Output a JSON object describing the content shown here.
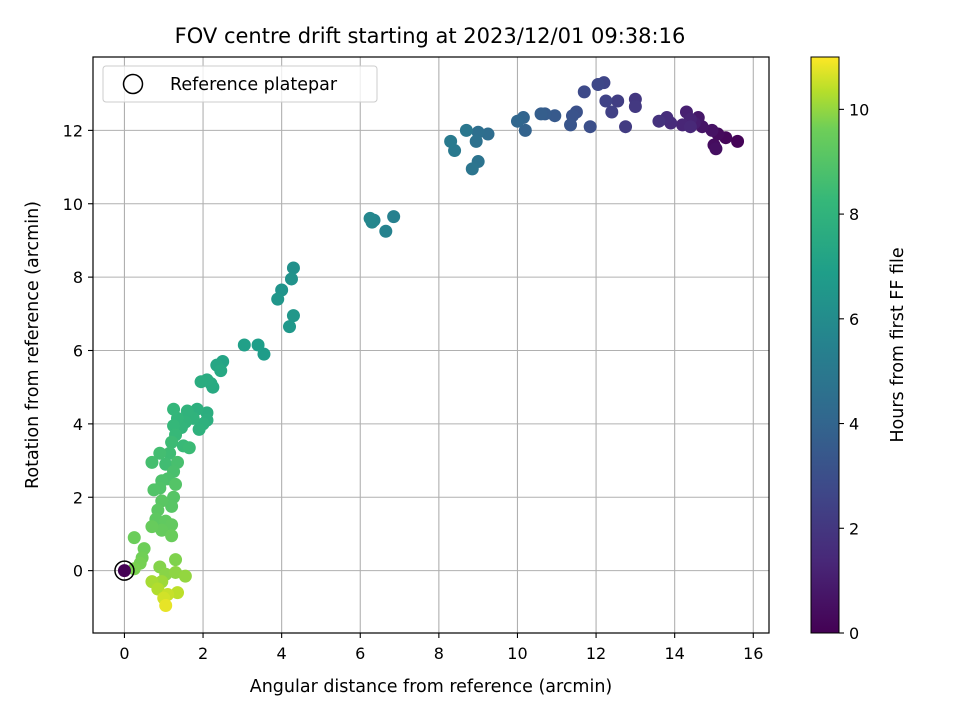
{
  "chart_data": {
    "type": "scatter",
    "title": "FOV centre drift starting at 2023/12/01 09:38:16",
    "xlabel": "Angular distance from reference (arcmin)",
    "ylabel": "Rotation from reference (arcmin)",
    "xlim": [
      -0.8,
      16.4
    ],
    "ylim": [
      -1.7,
      14.0
    ],
    "xticks": [
      0,
      2,
      4,
      6,
      8,
      10,
      12,
      14,
      16
    ],
    "yticks": [
      0,
      2,
      4,
      6,
      8,
      10,
      12
    ],
    "grid": true,
    "legend": {
      "placement": "top-left",
      "entries": [
        "Reference platepar"
      ]
    },
    "colorbar": {
      "label": "Hours from first FF file",
      "range": [
        0,
        11
      ],
      "ticks": [
        0,
        2,
        4,
        6,
        8,
        10
      ],
      "colormap": "viridis"
    },
    "reference_point": {
      "x": 0,
      "y": 0
    },
    "points": [
      {
        "x": 15.6,
        "y": 11.7,
        "c": 0.1
      },
      {
        "x": 15.3,
        "y": 11.8,
        "c": 0.2
      },
      {
        "x": 15.1,
        "y": 11.9,
        "c": 0.3
      },
      {
        "x": 15.0,
        "y": 11.6,
        "c": 0.4
      },
      {
        "x": 15.05,
        "y": 11.5,
        "c": 0.5
      },
      {
        "x": 14.95,
        "y": 12.0,
        "c": 0.6
      },
      {
        "x": 14.7,
        "y": 12.1,
        "c": 0.7
      },
      {
        "x": 14.6,
        "y": 12.35,
        "c": 0.8
      },
      {
        "x": 14.5,
        "y": 12.2,
        "c": 1.0
      },
      {
        "x": 14.3,
        "y": 12.5,
        "c": 1.1
      },
      {
        "x": 14.4,
        "y": 12.3,
        "c": 1.2
      },
      {
        "x": 14.2,
        "y": 12.15,
        "c": 1.3
      },
      {
        "x": 14.4,
        "y": 12.1,
        "c": 1.4
      },
      {
        "x": 13.9,
        "y": 12.2,
        "c": 1.5
      },
      {
        "x": 13.8,
        "y": 12.35,
        "c": 1.6
      },
      {
        "x": 13.6,
        "y": 12.25,
        "c": 1.8
      },
      {
        "x": 13.0,
        "y": 12.85,
        "c": 2.0
      },
      {
        "x": 13.0,
        "y": 12.65,
        "c": 2.1
      },
      {
        "x": 12.75,
        "y": 12.1,
        "c": 2.2
      },
      {
        "x": 12.55,
        "y": 12.8,
        "c": 2.3
      },
      {
        "x": 12.4,
        "y": 12.5,
        "c": 2.4
      },
      {
        "x": 12.25,
        "y": 12.8,
        "c": 2.5
      },
      {
        "x": 12.2,
        "y": 13.3,
        "c": 2.6
      },
      {
        "x": 12.05,
        "y": 13.25,
        "c": 2.7
      },
      {
        "x": 11.7,
        "y": 13.05,
        "c": 2.8
      },
      {
        "x": 11.85,
        "y": 12.1,
        "c": 3.0
      },
      {
        "x": 11.5,
        "y": 12.5,
        "c": 3.1
      },
      {
        "x": 11.4,
        "y": 12.4,
        "c": 3.2
      },
      {
        "x": 11.35,
        "y": 12.15,
        "c": 3.3
      },
      {
        "x": 10.95,
        "y": 12.4,
        "c": 3.5
      },
      {
        "x": 10.7,
        "y": 12.45,
        "c": 3.6
      },
      {
        "x": 10.6,
        "y": 12.45,
        "c": 3.7
      },
      {
        "x": 10.2,
        "y": 12.0,
        "c": 3.9
      },
      {
        "x": 10.15,
        "y": 12.35,
        "c": 4.0
      },
      {
        "x": 10.0,
        "y": 12.25,
        "c": 4.1
      },
      {
        "x": 9.25,
        "y": 11.9,
        "c": 4.4
      },
      {
        "x": 9.0,
        "y": 11.95,
        "c": 4.5
      },
      {
        "x": 8.95,
        "y": 11.7,
        "c": 4.6
      },
      {
        "x": 9.0,
        "y": 11.15,
        "c": 4.7
      },
      {
        "x": 8.85,
        "y": 10.95,
        "c": 4.8
      },
      {
        "x": 8.7,
        "y": 12.0,
        "c": 4.9
      },
      {
        "x": 8.4,
        "y": 11.45,
        "c": 5.0
      },
      {
        "x": 8.3,
        "y": 11.7,
        "c": 5.1
      },
      {
        "x": 6.85,
        "y": 9.65,
        "c": 5.4
      },
      {
        "x": 6.65,
        "y": 9.25,
        "c": 5.5
      },
      {
        "x": 6.35,
        "y": 9.55,
        "c": 5.6
      },
      {
        "x": 6.3,
        "y": 9.5,
        "c": 5.7
      },
      {
        "x": 6.25,
        "y": 9.6,
        "c": 5.75
      },
      {
        "x": 4.3,
        "y": 8.25,
        "c": 6.2
      },
      {
        "x": 4.25,
        "y": 7.95,
        "c": 6.3
      },
      {
        "x": 4.0,
        "y": 7.65,
        "c": 6.4
      },
      {
        "x": 3.9,
        "y": 7.4,
        "c": 6.5
      },
      {
        "x": 4.3,
        "y": 6.95,
        "c": 6.55
      },
      {
        "x": 4.2,
        "y": 6.65,
        "c": 6.6
      },
      {
        "x": 3.55,
        "y": 5.9,
        "c": 6.8
      },
      {
        "x": 3.4,
        "y": 6.15,
        "c": 6.9
      },
      {
        "x": 3.05,
        "y": 6.15,
        "c": 7.0
      },
      {
        "x": 2.5,
        "y": 5.7,
        "c": 7.2
      },
      {
        "x": 2.35,
        "y": 5.6,
        "c": 7.3
      },
      {
        "x": 2.45,
        "y": 5.45,
        "c": 7.4
      },
      {
        "x": 2.25,
        "y": 5.0,
        "c": 7.5
      },
      {
        "x": 2.2,
        "y": 5.1,
        "c": 7.55
      },
      {
        "x": 2.1,
        "y": 5.2,
        "c": 7.6
      },
      {
        "x": 1.95,
        "y": 5.15,
        "c": 7.65
      },
      {
        "x": 2.1,
        "y": 4.3,
        "c": 7.7
      },
      {
        "x": 2.1,
        "y": 4.1,
        "c": 7.75
      },
      {
        "x": 1.85,
        "y": 4.4,
        "c": 7.8
      },
      {
        "x": 2.0,
        "y": 4.0,
        "c": 7.85
      },
      {
        "x": 1.9,
        "y": 3.85,
        "c": 7.9
      },
      {
        "x": 1.75,
        "y": 4.15,
        "c": 7.95
      },
      {
        "x": 1.6,
        "y": 4.35,
        "c": 8.0
      },
      {
        "x": 1.55,
        "y": 4.05,
        "c": 8.05
      },
      {
        "x": 1.45,
        "y": 3.9,
        "c": 8.1
      },
      {
        "x": 1.35,
        "y": 4.15,
        "c": 8.15
      },
      {
        "x": 1.25,
        "y": 4.4,
        "c": 8.2
      },
      {
        "x": 1.25,
        "y": 3.95,
        "c": 8.25
      },
      {
        "x": 1.3,
        "y": 3.7,
        "c": 8.3
      },
      {
        "x": 1.5,
        "y": 3.4,
        "c": 8.35
      },
      {
        "x": 1.65,
        "y": 3.35,
        "c": 8.4
      },
      {
        "x": 1.2,
        "y": 3.5,
        "c": 8.45
      },
      {
        "x": 1.15,
        "y": 3.2,
        "c": 8.5
      },
      {
        "x": 1.05,
        "y": 2.9,
        "c": 8.55
      },
      {
        "x": 0.9,
        "y": 3.2,
        "c": 8.6
      },
      {
        "x": 0.7,
        "y": 2.95,
        "c": 8.65
      },
      {
        "x": 1.35,
        "y": 2.95,
        "c": 8.7
      },
      {
        "x": 1.25,
        "y": 2.7,
        "c": 8.75
      },
      {
        "x": 1.1,
        "y": 2.5,
        "c": 8.8
      },
      {
        "x": 0.95,
        "y": 2.45,
        "c": 8.85
      },
      {
        "x": 0.9,
        "y": 2.25,
        "c": 8.9
      },
      {
        "x": 0.75,
        "y": 2.2,
        "c": 8.95
      },
      {
        "x": 1.3,
        "y": 2.35,
        "c": 9.0
      },
      {
        "x": 1.25,
        "y": 2.0,
        "c": 9.05
      },
      {
        "x": 1.2,
        "y": 1.75,
        "c": 9.1
      },
      {
        "x": 0.95,
        "y": 1.9,
        "c": 9.15
      },
      {
        "x": 0.85,
        "y": 1.65,
        "c": 9.2
      },
      {
        "x": 0.8,
        "y": 1.4,
        "c": 9.25
      },
      {
        "x": 1.05,
        "y": 1.35,
        "c": 9.3
      },
      {
        "x": 1.2,
        "y": 1.25,
        "c": 9.35
      },
      {
        "x": 0.95,
        "y": 1.1,
        "c": 9.4
      },
      {
        "x": 0.7,
        "y": 1.2,
        "c": 9.45
      },
      {
        "x": 1.2,
        "y": 0.95,
        "c": 9.5
      },
      {
        "x": 0.25,
        "y": 0.9,
        "c": 9.55
      },
      {
        "x": 0.5,
        "y": 0.6,
        "c": 9.6
      },
      {
        "x": 0.45,
        "y": 0.35,
        "c": 9.65
      },
      {
        "x": 0.4,
        "y": 0.2,
        "c": 9.7
      },
      {
        "x": 0.25,
        "y": 0.05,
        "c": 9.75
      },
      {
        "x": 1.3,
        "y": 0.3,
        "c": 9.8
      },
      {
        "x": 0.9,
        "y": 0.1,
        "c": 9.85
      },
      {
        "x": 1.05,
        "y": -0.1,
        "c": 9.9
      },
      {
        "x": 1.3,
        "y": -0.05,
        "c": 9.95
      },
      {
        "x": 1.55,
        "y": -0.15,
        "c": 10.0
      },
      {
        "x": 0.95,
        "y": -0.3,
        "c": 10.1
      },
      {
        "x": 0.7,
        "y": -0.3,
        "c": 10.2
      },
      {
        "x": 0.85,
        "y": -0.5,
        "c": 10.3
      },
      {
        "x": 1.35,
        "y": -0.6,
        "c": 10.4
      },
      {
        "x": 1.1,
        "y": -0.65,
        "c": 10.5
      },
      {
        "x": 1.0,
        "y": -0.75,
        "c": 10.6
      },
      {
        "x": 1.05,
        "y": -0.95,
        "c": 10.8
      },
      {
        "x": 0.0,
        "y": 0.0,
        "c": 0.0
      }
    ]
  }
}
